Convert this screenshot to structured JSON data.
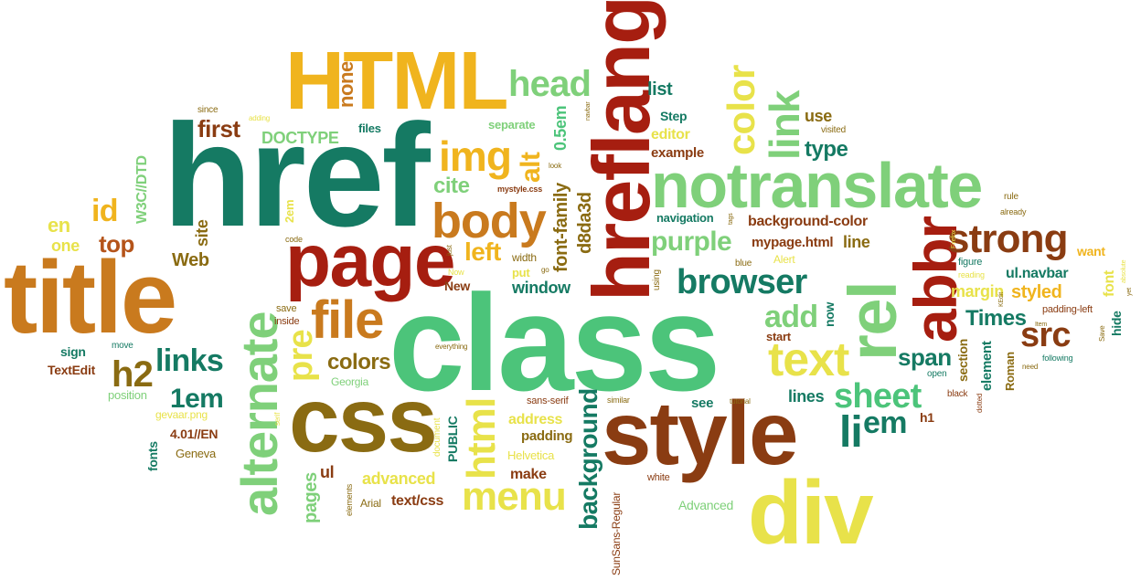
{
  "palette": {
    "teal": "#157a63",
    "green": "#4cc47a",
    "lightgreen": "#7fd07a",
    "brown": "#8a3c12",
    "darkred": "#a61e10",
    "orange": "#c97a1e",
    "gold": "#f0b41e",
    "yellow": "#e8e24a",
    "olive": "#8a6b12",
    "rust": "#b5541a"
  },
  "words": [
    {
      "text": "class",
      "color": "green"
    },
    {
      "text": "href",
      "color": "teal"
    },
    {
      "text": "title",
      "color": "orange"
    },
    {
      "text": "HTML",
      "color": "gold"
    },
    {
      "text": "hreflang",
      "color": "darkred"
    },
    {
      "text": "style",
      "color": "brown"
    },
    {
      "text": "notranslate",
      "color": "lightgreen"
    },
    {
      "text": "css",
      "color": "olive"
    },
    {
      "text": "div",
      "color": "yellow"
    },
    {
      "text": "page",
      "color": "darkred"
    },
    {
      "text": "rel",
      "color": "lightgreen"
    },
    {
      "text": "abbr",
      "color": "darkred"
    },
    {
      "text": "alternate",
      "color": "lightgreen"
    },
    {
      "text": "body",
      "color": "orange"
    },
    {
      "text": "file",
      "color": "orange"
    },
    {
      "text": "text",
      "color": "yellow"
    },
    {
      "text": "strong",
      "color": "brown"
    },
    {
      "text": "browser",
      "color": "teal"
    },
    {
      "text": "head",
      "color": "lightgreen"
    },
    {
      "text": "link",
      "color": "lightgreen"
    },
    {
      "text": "color",
      "color": "yellow"
    },
    {
      "text": "img",
      "color": "gold"
    },
    {
      "text": "sheet",
      "color": "green"
    },
    {
      "text": "menu",
      "color": "yellow"
    },
    {
      "text": "html",
      "color": "yellow"
    },
    {
      "text": "background",
      "color": "teal"
    },
    {
      "text": "purple",
      "color": "lightgreen"
    },
    {
      "text": "links",
      "color": "teal"
    },
    {
      "text": "pre",
      "color": "yellow"
    },
    {
      "text": "src",
      "color": "brown"
    },
    {
      "text": "add",
      "color": "lightgreen"
    },
    {
      "text": "h2",
      "color": "olive"
    },
    {
      "text": "top",
      "color": "rust"
    },
    {
      "text": "id",
      "color": "gold"
    },
    {
      "text": "li",
      "color": "teal"
    },
    {
      "text": "em",
      "color": "teal"
    },
    {
      "text": "span",
      "color": "teal"
    },
    {
      "text": "1em",
      "color": "teal"
    },
    {
      "text": "colors",
      "color": "olive"
    },
    {
      "text": "first",
      "color": "brown"
    },
    {
      "text": "left",
      "color": "gold"
    },
    {
      "text": "cite",
      "color": "lightgreen"
    },
    {
      "text": "alt",
      "color": "gold"
    },
    {
      "text": "none",
      "color": "orange"
    },
    {
      "text": "font-family",
      "color": "olive"
    },
    {
      "text": "d8da3d",
      "color": "olive"
    },
    {
      "text": "Times",
      "color": "teal"
    },
    {
      "text": "type",
      "color": "teal"
    },
    {
      "text": "use",
      "color": "olive"
    },
    {
      "text": "list",
      "color": "teal"
    },
    {
      "text": "DOCTYPE",
      "color": "lightgreen"
    },
    {
      "text": "background-color",
      "color": "brown"
    },
    {
      "text": "mypage.html",
      "color": "brown"
    },
    {
      "text": "line",
      "color": "olive"
    },
    {
      "text": "lines",
      "color": "teal"
    },
    {
      "text": "window",
      "color": "teal"
    },
    {
      "text": "Web",
      "color": "olive"
    },
    {
      "text": "site",
      "color": "olive"
    },
    {
      "text": "en",
      "color": "yellow"
    },
    {
      "text": "one",
      "color": "yellow"
    },
    {
      "text": "W3C//DTD",
      "color": "lightgreen"
    },
    {
      "text": "navigation",
      "color": "teal"
    },
    {
      "text": "editor",
      "color": "yellow"
    },
    {
      "text": "example",
      "color": "brown"
    },
    {
      "text": "Step",
      "color": "teal"
    },
    {
      "text": "separate",
      "color": "lightgreen"
    },
    {
      "text": "0.5em",
      "color": "green"
    },
    {
      "text": "files",
      "color": "teal"
    },
    {
      "text": "since",
      "color": "olive"
    },
    {
      "text": "adding",
      "color": "yellow"
    },
    {
      "text": "mystyle.css",
      "color": "brown"
    },
    {
      "text": "visited",
      "color": "olive"
    },
    {
      "text": "rule",
      "color": "olive"
    },
    {
      "text": "already",
      "color": "olive"
    },
    {
      "text": "ul.navbar",
      "color": "teal"
    },
    {
      "text": "styled",
      "color": "gold"
    },
    {
      "text": "font",
      "color": "yellow"
    },
    {
      "text": "margin",
      "color": "yellow"
    },
    {
      "text": "want",
      "color": "gold"
    },
    {
      "text": "figure",
      "color": "teal"
    },
    {
      "text": "reading",
      "color": "yellow"
    },
    {
      "text": "padding-left",
      "color": "brown"
    },
    {
      "text": "hide",
      "color": "teal"
    },
    {
      "text": "Save",
      "color": "olive"
    },
    {
      "text": "following",
      "color": "teal"
    },
    {
      "text": "element",
      "color": "teal"
    },
    {
      "text": "section",
      "color": "olive"
    },
    {
      "text": "Roman",
      "color": "olive"
    },
    {
      "text": "open",
      "color": "teal"
    },
    {
      "text": "black",
      "color": "brown"
    },
    {
      "text": "dotted",
      "color": "brown"
    },
    {
      "text": "start",
      "color": "brown"
    },
    {
      "text": "now",
      "color": "teal"
    },
    {
      "text": "Alert",
      "color": "yellow"
    },
    {
      "text": "blue",
      "color": "olive"
    },
    {
      "text": "using",
      "color": "olive"
    },
    {
      "text": "width",
      "color": "olive"
    },
    {
      "text": "put",
      "color": "yellow"
    },
    {
      "text": "go",
      "color": "olive"
    },
    {
      "text": "New",
      "color": "brown"
    },
    {
      "text": "Now",
      "color": "yellow"
    },
    {
      "text": "just",
      "color": "olive"
    },
    {
      "text": "code",
      "color": "olive"
    },
    {
      "text": "2em",
      "color": "yellow"
    },
    {
      "text": "save",
      "color": "olive"
    },
    {
      "text": "inside",
      "color": "brown"
    },
    {
      "text": "move",
      "color": "teal"
    },
    {
      "text": "sign",
      "color": "teal"
    },
    {
      "text": "TextEdit",
      "color": "brown"
    },
    {
      "text": "position",
      "color": "lightgreen"
    },
    {
      "text": "gevaar.png",
      "color": "yellow"
    },
    {
      "text": "4.01//EN",
      "color": "brown"
    },
    {
      "text": "Geneva",
      "color": "olive"
    },
    {
      "text": "fonts",
      "color": "teal"
    },
    {
      "text": "pages",
      "color": "lightgreen"
    },
    {
      "text": "ul",
      "color": "brown"
    },
    {
      "text": "Arial",
      "color": "olive"
    },
    {
      "text": "elements",
      "color": "olive"
    },
    {
      "text": "advanced",
      "color": "yellow"
    },
    {
      "text": "text/css",
      "color": "brown"
    },
    {
      "text": "make",
      "color": "brown"
    },
    {
      "text": "Helvetica",
      "color": "yellow"
    },
    {
      "text": "padding",
      "color": "olive"
    },
    {
      "text": "address",
      "color": "yellow"
    },
    {
      "text": "sans-serif",
      "color": "brown"
    },
    {
      "text": "PUBLIC",
      "color": "teal"
    },
    {
      "text": "document",
      "color": "yellow"
    },
    {
      "text": "Georgia",
      "color": "lightgreen"
    },
    {
      "text": "everything",
      "color": "olive"
    },
    {
      "text": "SunSans-Regular",
      "color": "brown"
    },
    {
      "text": "similar",
      "color": "olive"
    },
    {
      "text": "see",
      "color": "teal"
    },
    {
      "text": "tutorial",
      "color": "olive"
    },
    {
      "text": "h1",
      "color": "brown"
    },
    {
      "text": "white",
      "color": "brown"
    },
    {
      "text": "Advanced",
      "color": "lightgreen"
    },
    {
      "text": "serif",
      "color": "yellow"
    },
    {
      "text": "look",
      "color": "olive"
    },
    {
      "text": "navbar",
      "color": "olive"
    },
    {
      "text": "tags",
      "color": "olive"
    },
    {
      "text": "Firefox",
      "color": "yellow"
    },
    {
      "text": "KEdit",
      "color": "olive"
    },
    {
      "text": "Item",
      "color": "olive"
    },
    {
      "text": "absolute",
      "color": "yellow"
    },
    {
      "text": "yet",
      "color": "olive"
    },
    {
      "text": "need",
      "color": "olive"
    }
  ]
}
